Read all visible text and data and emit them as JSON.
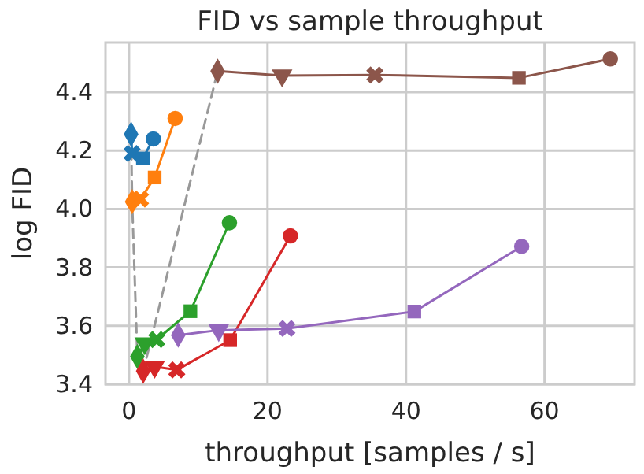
{
  "chart_data": {
    "type": "line",
    "title": "FID vs sample throughput",
    "xlabel": "throughput [samples / s]",
    "ylabel": "log FID",
    "xlim": [
      -3.4,
      73
    ],
    "ylim": [
      3.4,
      4.57
    ],
    "xticks": [
      0,
      20,
      40,
      60
    ],
    "yticks": [
      {
        "value": 3.4,
        "label": "3.4"
      },
      {
        "value": 3.6,
        "label": "3.6"
      },
      {
        "value": 3.8,
        "label": "3.8"
      },
      {
        "value": 4.0,
        "label": "4.0"
      },
      {
        "value": 4.2,
        "label": "4.2"
      },
      {
        "value": 4.4,
        "label": "4.4"
      }
    ],
    "grid": true,
    "series": [
      {
        "color": "#999999",
        "line_style": "dashed",
        "marker": "none",
        "x": [
          0.3,
          0.45,
          1.2,
          2.05,
          12.8
        ],
        "values": [
          4.256,
          4.025,
          3.495,
          3.445,
          4.472
        ]
      },
      {
        "color": "#1f77b4",
        "line_style": "solid",
        "marker": "none",
        "x": [
          0.3,
          0.45,
          2.0,
          3.5
        ],
        "values": [
          4.256,
          4.19,
          4.173,
          4.24
        ]
      },
      {
        "color": "#ff7f0e",
        "line_style": "solid",
        "marker": "none",
        "x": [
          0.45,
          1.66,
          3.7,
          6.66
        ],
        "values": [
          4.025,
          4.034,
          4.108,
          4.31
        ]
      },
      {
        "color": "#2ca02c",
        "line_style": "solid",
        "marker": "none",
        "x": [
          1.2,
          2.27,
          4.0,
          8.86,
          14.5
        ],
        "values": [
          3.495,
          3.54,
          3.553,
          3.65,
          3.953
        ]
      },
      {
        "color": "#d62728",
        "line_style": "solid",
        "marker": "none",
        "x": [
          2.05,
          3.7,
          6.9,
          14.6,
          23.3
        ],
        "values": [
          3.445,
          3.46,
          3.449,
          3.551,
          3.908
        ]
      },
      {
        "color": "#9467bd",
        "line_style": "solid",
        "marker": "none",
        "x": [
          7.1,
          12.95,
          22.8,
          41.2,
          56.7
        ],
        "values": [
          3.568,
          3.585,
          3.591,
          3.649,
          3.872
        ]
      },
      {
        "color": "#8c564b",
        "line_style": "solid",
        "marker": "none",
        "x": [
          12.8,
          22.1,
          35.5,
          56.3,
          69.5
        ],
        "values": [
          4.472,
          4.457,
          4.459,
          4.449,
          4.514
        ]
      },
      {
        "type": "scatter",
        "marker": "diamond",
        "x": [
          0.3,
          0.45,
          1.2,
          2.05,
          7.1,
          12.8
        ],
        "values": [
          4.256,
          4.025,
          3.495,
          3.445,
          3.568,
          4.472
        ],
        "colors": [
          "#1f77b4",
          "#ff7f0e",
          "#2ca02c",
          "#d62728",
          "#9467bd",
          "#8c564b"
        ]
      },
      {
        "type": "scatter",
        "marker": "triangle",
        "x": [
          2.27,
          3.7,
          12.95,
          22.1
        ],
        "values": [
          3.54,
          3.46,
          3.585,
          4.457
        ],
        "colors": [
          "#2ca02c",
          "#d62728",
          "#9467bd",
          "#8c564b"
        ]
      },
      {
        "type": "scatter",
        "marker": "cross",
        "x": [
          0.45,
          1.66,
          4.0,
          6.9,
          22.8,
          35.5
        ],
        "values": [
          4.19,
          4.034,
          3.553,
          3.449,
          3.591,
          4.459
        ],
        "colors": [
          "#1f77b4",
          "#ff7f0e",
          "#2ca02c",
          "#d62728",
          "#9467bd",
          "#8c564b"
        ]
      },
      {
        "type": "scatter",
        "marker": "square",
        "x": [
          2.0,
          3.7,
          8.86,
          14.6,
          41.2,
          56.3
        ],
        "values": [
          4.173,
          4.108,
          3.65,
          3.551,
          3.649,
          4.449
        ],
        "colors": [
          "#1f77b4",
          "#ff7f0e",
          "#2ca02c",
          "#d62728",
          "#9467bd",
          "#8c564b"
        ]
      },
      {
        "type": "scatter",
        "marker": "circle",
        "x": [
          3.5,
          6.66,
          14.5,
          23.3,
          56.7,
          69.5
        ],
        "values": [
          4.24,
          4.31,
          3.953,
          3.908,
          3.872,
          4.514
        ],
        "colors": [
          "#1f77b4",
          "#ff7f0e",
          "#2ca02c",
          "#d62728",
          "#9467bd",
          "#8c564b"
        ]
      }
    ]
  }
}
